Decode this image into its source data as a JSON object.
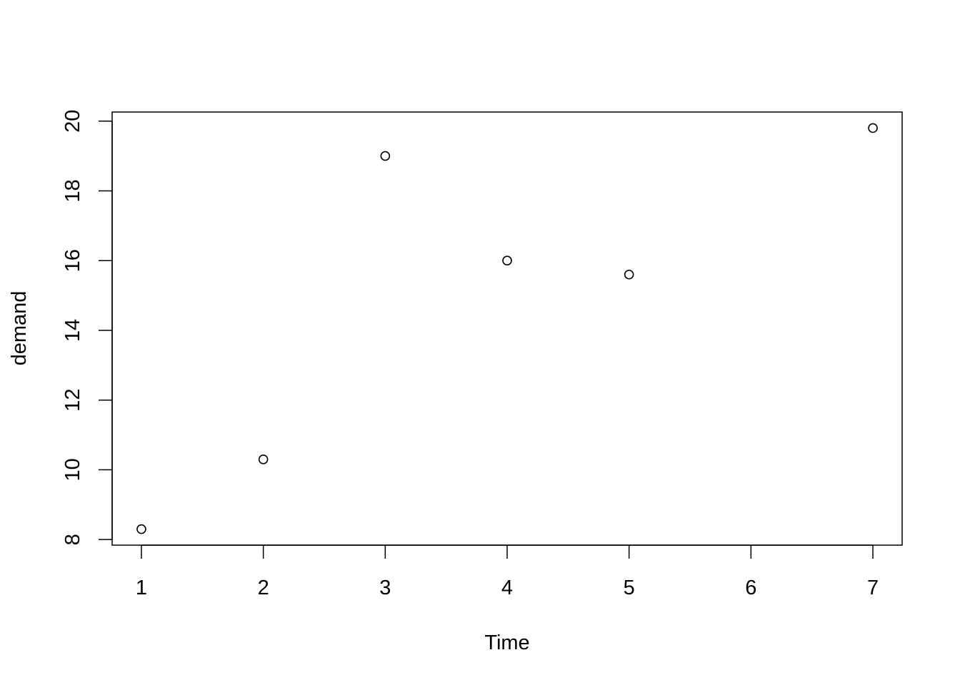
{
  "chart_data": {
    "type": "scatter",
    "title": "",
    "xlabel": "Time",
    "ylabel": "demand",
    "x": [
      1,
      2,
      3,
      4,
      5,
      7
    ],
    "y": [
      8.3,
      10.3,
      19.0,
      16.0,
      15.6,
      19.8
    ],
    "xlim": [
      0.76,
      7.24
    ],
    "ylim": [
      7.84,
      20.26
    ],
    "x_ticks": [
      "1",
      "2",
      "3",
      "4",
      "5",
      "6",
      "7"
    ],
    "y_ticks": [
      "8",
      "10",
      "12",
      "14",
      "16",
      "18",
      "20"
    ],
    "grid": false,
    "marker": "open-circle",
    "color": "#000000"
  }
}
